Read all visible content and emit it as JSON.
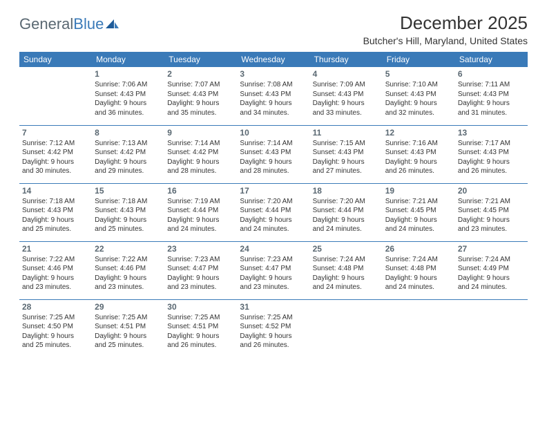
{
  "logo": {
    "text1": "General",
    "text2": "Blue"
  },
  "title": "December 2025",
  "location": "Butcher's Hill, Maryland, United States",
  "colors": {
    "header_bg": "#3a7ab8",
    "header_text": "#ffffff",
    "border": "#3a7ab8",
    "daynum": "#5a6872",
    "body_text": "#333333",
    "page_bg": "#ffffff",
    "logo_gray": "#5a6872",
    "logo_blue": "#3a7ab8"
  },
  "weekdays": [
    "Sunday",
    "Monday",
    "Tuesday",
    "Wednesday",
    "Thursday",
    "Friday",
    "Saturday"
  ],
  "weeks": [
    [
      {
        "day": "",
        "sunrise": "",
        "sunset": "",
        "daylight1": "",
        "daylight2": ""
      },
      {
        "day": "1",
        "sunrise": "Sunrise: 7:06 AM",
        "sunset": "Sunset: 4:43 PM",
        "daylight1": "Daylight: 9 hours",
        "daylight2": "and 36 minutes."
      },
      {
        "day": "2",
        "sunrise": "Sunrise: 7:07 AM",
        "sunset": "Sunset: 4:43 PM",
        "daylight1": "Daylight: 9 hours",
        "daylight2": "and 35 minutes."
      },
      {
        "day": "3",
        "sunrise": "Sunrise: 7:08 AM",
        "sunset": "Sunset: 4:43 PM",
        "daylight1": "Daylight: 9 hours",
        "daylight2": "and 34 minutes."
      },
      {
        "day": "4",
        "sunrise": "Sunrise: 7:09 AM",
        "sunset": "Sunset: 4:43 PM",
        "daylight1": "Daylight: 9 hours",
        "daylight2": "and 33 minutes."
      },
      {
        "day": "5",
        "sunrise": "Sunrise: 7:10 AM",
        "sunset": "Sunset: 4:43 PM",
        "daylight1": "Daylight: 9 hours",
        "daylight2": "and 32 minutes."
      },
      {
        "day": "6",
        "sunrise": "Sunrise: 7:11 AM",
        "sunset": "Sunset: 4:43 PM",
        "daylight1": "Daylight: 9 hours",
        "daylight2": "and 31 minutes."
      }
    ],
    [
      {
        "day": "7",
        "sunrise": "Sunrise: 7:12 AM",
        "sunset": "Sunset: 4:42 PM",
        "daylight1": "Daylight: 9 hours",
        "daylight2": "and 30 minutes."
      },
      {
        "day": "8",
        "sunrise": "Sunrise: 7:13 AM",
        "sunset": "Sunset: 4:42 PM",
        "daylight1": "Daylight: 9 hours",
        "daylight2": "and 29 minutes."
      },
      {
        "day": "9",
        "sunrise": "Sunrise: 7:14 AM",
        "sunset": "Sunset: 4:42 PM",
        "daylight1": "Daylight: 9 hours",
        "daylight2": "and 28 minutes."
      },
      {
        "day": "10",
        "sunrise": "Sunrise: 7:14 AM",
        "sunset": "Sunset: 4:43 PM",
        "daylight1": "Daylight: 9 hours",
        "daylight2": "and 28 minutes."
      },
      {
        "day": "11",
        "sunrise": "Sunrise: 7:15 AM",
        "sunset": "Sunset: 4:43 PM",
        "daylight1": "Daylight: 9 hours",
        "daylight2": "and 27 minutes."
      },
      {
        "day": "12",
        "sunrise": "Sunrise: 7:16 AM",
        "sunset": "Sunset: 4:43 PM",
        "daylight1": "Daylight: 9 hours",
        "daylight2": "and 26 minutes."
      },
      {
        "day": "13",
        "sunrise": "Sunrise: 7:17 AM",
        "sunset": "Sunset: 4:43 PM",
        "daylight1": "Daylight: 9 hours",
        "daylight2": "and 26 minutes."
      }
    ],
    [
      {
        "day": "14",
        "sunrise": "Sunrise: 7:18 AM",
        "sunset": "Sunset: 4:43 PM",
        "daylight1": "Daylight: 9 hours",
        "daylight2": "and 25 minutes."
      },
      {
        "day": "15",
        "sunrise": "Sunrise: 7:18 AM",
        "sunset": "Sunset: 4:43 PM",
        "daylight1": "Daylight: 9 hours",
        "daylight2": "and 25 minutes."
      },
      {
        "day": "16",
        "sunrise": "Sunrise: 7:19 AM",
        "sunset": "Sunset: 4:44 PM",
        "daylight1": "Daylight: 9 hours",
        "daylight2": "and 24 minutes."
      },
      {
        "day": "17",
        "sunrise": "Sunrise: 7:20 AM",
        "sunset": "Sunset: 4:44 PM",
        "daylight1": "Daylight: 9 hours",
        "daylight2": "and 24 minutes."
      },
      {
        "day": "18",
        "sunrise": "Sunrise: 7:20 AM",
        "sunset": "Sunset: 4:44 PM",
        "daylight1": "Daylight: 9 hours",
        "daylight2": "and 24 minutes."
      },
      {
        "day": "19",
        "sunrise": "Sunrise: 7:21 AM",
        "sunset": "Sunset: 4:45 PM",
        "daylight1": "Daylight: 9 hours",
        "daylight2": "and 24 minutes."
      },
      {
        "day": "20",
        "sunrise": "Sunrise: 7:21 AM",
        "sunset": "Sunset: 4:45 PM",
        "daylight1": "Daylight: 9 hours",
        "daylight2": "and 23 minutes."
      }
    ],
    [
      {
        "day": "21",
        "sunrise": "Sunrise: 7:22 AM",
        "sunset": "Sunset: 4:46 PM",
        "daylight1": "Daylight: 9 hours",
        "daylight2": "and 23 minutes."
      },
      {
        "day": "22",
        "sunrise": "Sunrise: 7:22 AM",
        "sunset": "Sunset: 4:46 PM",
        "daylight1": "Daylight: 9 hours",
        "daylight2": "and 23 minutes."
      },
      {
        "day": "23",
        "sunrise": "Sunrise: 7:23 AM",
        "sunset": "Sunset: 4:47 PM",
        "daylight1": "Daylight: 9 hours",
        "daylight2": "and 23 minutes."
      },
      {
        "day": "24",
        "sunrise": "Sunrise: 7:23 AM",
        "sunset": "Sunset: 4:47 PM",
        "daylight1": "Daylight: 9 hours",
        "daylight2": "and 23 minutes."
      },
      {
        "day": "25",
        "sunrise": "Sunrise: 7:24 AM",
        "sunset": "Sunset: 4:48 PM",
        "daylight1": "Daylight: 9 hours",
        "daylight2": "and 24 minutes."
      },
      {
        "day": "26",
        "sunrise": "Sunrise: 7:24 AM",
        "sunset": "Sunset: 4:48 PM",
        "daylight1": "Daylight: 9 hours",
        "daylight2": "and 24 minutes."
      },
      {
        "day": "27",
        "sunrise": "Sunrise: 7:24 AM",
        "sunset": "Sunset: 4:49 PM",
        "daylight1": "Daylight: 9 hours",
        "daylight2": "and 24 minutes."
      }
    ],
    [
      {
        "day": "28",
        "sunrise": "Sunrise: 7:25 AM",
        "sunset": "Sunset: 4:50 PM",
        "daylight1": "Daylight: 9 hours",
        "daylight2": "and 25 minutes."
      },
      {
        "day": "29",
        "sunrise": "Sunrise: 7:25 AM",
        "sunset": "Sunset: 4:51 PM",
        "daylight1": "Daylight: 9 hours",
        "daylight2": "and 25 minutes."
      },
      {
        "day": "30",
        "sunrise": "Sunrise: 7:25 AM",
        "sunset": "Sunset: 4:51 PM",
        "daylight1": "Daylight: 9 hours",
        "daylight2": "and 26 minutes."
      },
      {
        "day": "31",
        "sunrise": "Sunrise: 7:25 AM",
        "sunset": "Sunset: 4:52 PM",
        "daylight1": "Daylight: 9 hours",
        "daylight2": "and 26 minutes."
      },
      {
        "day": "",
        "sunrise": "",
        "sunset": "",
        "daylight1": "",
        "daylight2": ""
      },
      {
        "day": "",
        "sunrise": "",
        "sunset": "",
        "daylight1": "",
        "daylight2": ""
      },
      {
        "day": "",
        "sunrise": "",
        "sunset": "",
        "daylight1": "",
        "daylight2": ""
      }
    ]
  ]
}
